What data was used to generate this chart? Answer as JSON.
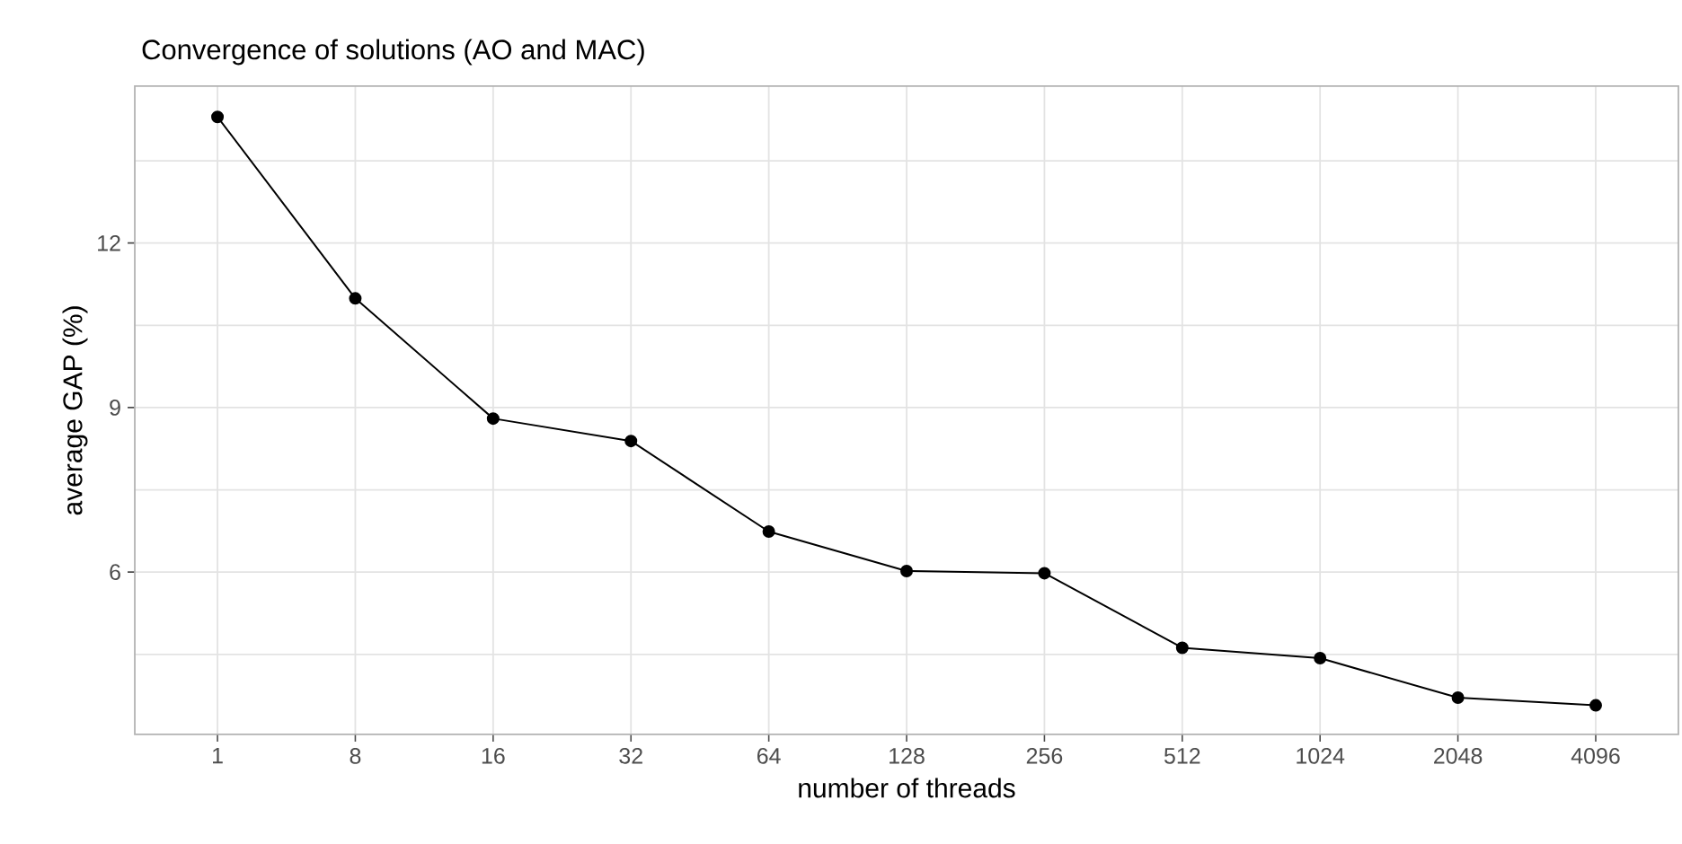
{
  "chart_data": {
    "type": "line",
    "title": "Convergence of solutions (AO and MAC)",
    "xlabel": "number of threads",
    "ylabel": "average GAP (%)",
    "categories": [
      "1",
      "8",
      "16",
      "32",
      "64",
      "128",
      "256",
      "512",
      "1024",
      "2048",
      "4096"
    ],
    "series": [
      {
        "color": "#000000",
        "values": [
          14.3,
          10.99,
          8.8,
          8.39,
          6.74,
          6.02,
          5.98,
          4.62,
          4.43,
          3.71,
          3.57
        ]
      }
    ],
    "ylim": [
      3.04,
      14.86
    ],
    "yticks": [
      6,
      9,
      12
    ],
    "grid": true,
    "marker": "circle",
    "line_style": "solid"
  }
}
